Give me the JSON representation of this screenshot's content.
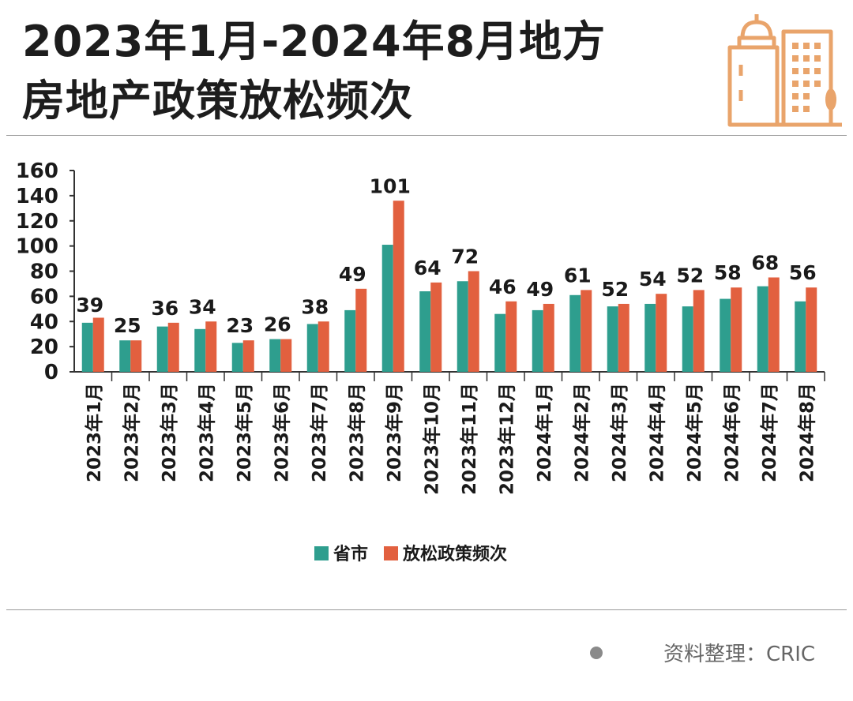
{
  "title": {
    "line1": "2023年1月-2024年8月地方",
    "line2": "房地产政策放松频次"
  },
  "source": "资料整理：CRIC",
  "colors": {
    "teal": "#2e9e8e",
    "orange": "#e2603f",
    "logo": "#e9a46b"
  },
  "icons": {
    "logo": "building-icon",
    "bullet": "dot-icon"
  },
  "chart_data": {
    "type": "bar",
    "categories": [
      "2023年1月",
      "2023年2月",
      "2023年3月",
      "2023年4月",
      "2023年5月",
      "2023年6月",
      "2023年7月",
      "2023年8月",
      "2023年9月",
      "2023年10月",
      "2023年11月",
      "2023年12月",
      "2024年1月",
      "2024年2月",
      "2024年3月",
      "2024年4月",
      "2024年5月",
      "2024年6月",
      "2024年7月",
      "2024年8月"
    ],
    "series": [
      {
        "name": "省市",
        "color": "#2e9e8e",
        "values": [
          39,
          25,
          36,
          34,
          23,
          26,
          38,
          49,
          101,
          64,
          72,
          46,
          49,
          61,
          52,
          54,
          52,
          58,
          68,
          56
        ]
      },
      {
        "name": "放松政策频次",
        "color": "#e2603f",
        "values": [
          43,
          25,
          39,
          40,
          25,
          26,
          40,
          66,
          136,
          71,
          80,
          56,
          54,
          65,
          54,
          62,
          65,
          67,
          75,
          67
        ]
      }
    ],
    "data_labels": [
      39,
      25,
      36,
      34,
      23,
      26,
      38,
      49,
      101,
      64,
      72,
      46,
      49,
      61,
      52,
      54,
      52,
      58,
      68,
      56
    ],
    "yticks": [
      0,
      20,
      40,
      60,
      80,
      100,
      120,
      140,
      160
    ],
    "ylim": [
      0,
      160
    ],
    "legend": "bottom-center",
    "grid": false
  }
}
